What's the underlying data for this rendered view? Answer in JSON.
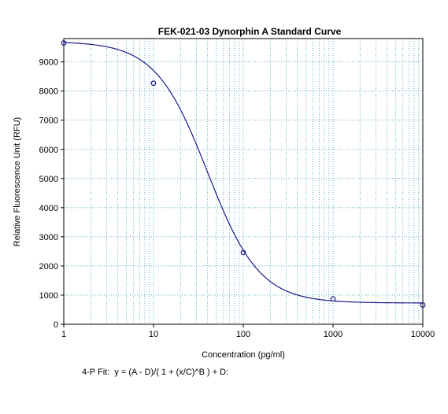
{
  "chart_data": {
    "type": "scatter",
    "title": "FEK-021-03 Dynorphin A Standard Curve",
    "xlabel": "Concentration (pg/ml)",
    "ylabel": "Relative Fluorescence Unit (RFU)",
    "xscale": "log",
    "xlim": [
      1,
      10000
    ],
    "ylim": [
      0,
      9800
    ],
    "x_ticks": [
      1,
      10,
      100,
      1000,
      10000
    ],
    "x_tick_labels": [
      "1",
      "10",
      "100",
      "1000",
      "10000"
    ],
    "y_ticks": [
      0,
      1000,
      2000,
      3000,
      4000,
      5000,
      6000,
      7000,
      8000,
      9000
    ],
    "y_tick_labels": [
      "0",
      "1000",
      "2000",
      "3000",
      "4000",
      "5000",
      "6000",
      "7000",
      "8000",
      "9000"
    ],
    "grid": true,
    "series": [
      {
        "points": [
          {
            "x": 1,
            "y": 9650
          },
          {
            "x": 10,
            "y": 8270
          },
          {
            "x": 100,
            "y": 2460
          },
          {
            "x": 1000,
            "y": 870
          },
          {
            "x": 10000,
            "y": 660
          }
        ],
        "fit": {
          "model": "4PL",
          "A": 9700,
          "B": 1.5,
          "C": 40,
          "D": 730
        }
      }
    ],
    "annotation": "4-P Fit:  y = (A - D)/( 1 + (x/C)^B ) + D:"
  },
  "colors": {
    "grid": "#3aa0b8",
    "curve": "#1a1a8c",
    "marker": "#1a1a8c",
    "axis": "#000000"
  }
}
